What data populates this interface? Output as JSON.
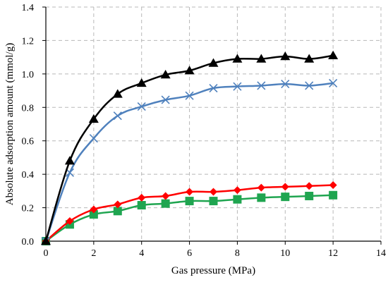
{
  "chart_data": {
    "type": "line",
    "title": "",
    "xlabel": "Gas pressure (MPa)",
    "ylabel": "Absolute adsorption amount (mmol/g)",
    "xlim": [
      0,
      14
    ],
    "ylim": [
      0,
      1.4
    ],
    "xticks": [
      0,
      2,
      4,
      6,
      8,
      10,
      12,
      14
    ],
    "yticks": [
      0.0,
      0.2,
      0.4,
      0.6,
      0.8,
      1.0,
      1.2,
      1.4
    ],
    "xtick_labels": [
      "0",
      "2",
      "4",
      "6",
      "8",
      "10",
      "12",
      "14"
    ],
    "ytick_labels": [
      "0.0",
      "0.2",
      "0.4",
      "0.6",
      "0.8",
      "1.0",
      "1.2",
      "1.4"
    ],
    "grid": true,
    "x": [
      0,
      1,
      2,
      3,
      4,
      5,
      6,
      7,
      8,
      9,
      10,
      11,
      12
    ],
    "series": [
      {
        "marker": "triangle",
        "color": "#000000",
        "values": [
          0.0,
          0.48,
          0.73,
          0.88,
          0.945,
          0.995,
          1.02,
          1.065,
          1.09,
          1.09,
          1.105,
          1.09,
          1.11
        ]
      },
      {
        "marker": "x",
        "color": "#4f81bd",
        "values": [
          0.0,
          0.41,
          0.615,
          0.75,
          0.805,
          0.845,
          0.87,
          0.915,
          0.925,
          0.93,
          0.94,
          0.93,
          0.945
        ]
      },
      {
        "marker": "diamond",
        "color": "#ff0000",
        "values": [
          0.0,
          0.12,
          0.19,
          0.22,
          0.26,
          0.27,
          0.295,
          0.295,
          0.305,
          0.32,
          0.325,
          0.33,
          0.335
        ]
      },
      {
        "marker": "square",
        "color": "#1fa550",
        "values": [
          0.0,
          0.1,
          0.16,
          0.18,
          0.215,
          0.225,
          0.24,
          0.24,
          0.25,
          0.26,
          0.265,
          0.27,
          0.275
        ]
      }
    ]
  }
}
